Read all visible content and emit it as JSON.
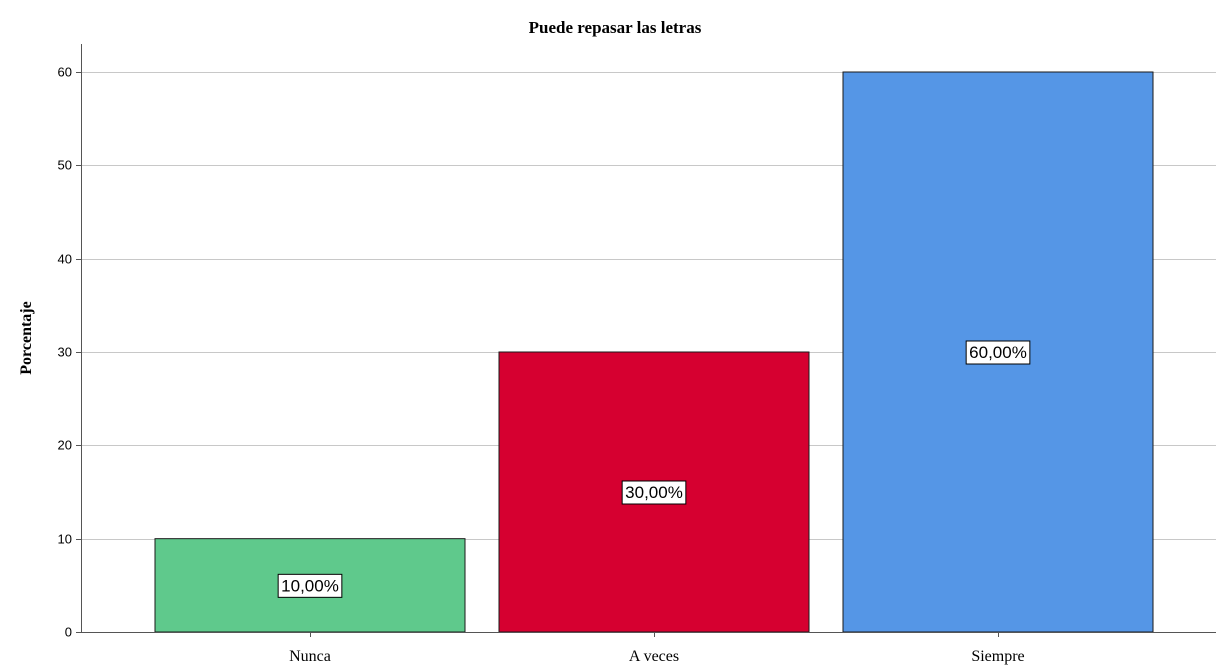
{
  "chart_data": {
    "type": "bar",
    "title": "Puede repasar las letras",
    "xlabel": "",
    "ylabel": "Porcentaje",
    "categories": [
      "Nunca",
      "A veces",
      "Siempre"
    ],
    "values": [
      10,
      30,
      60
    ],
    "data_labels": [
      "10,00%",
      "30,00%",
      "60,00%"
    ],
    "colors": [
      "#5fc98c",
      "#d60030",
      "#5596e6"
    ],
    "ylim": [
      0,
      63
    ],
    "yticks": [
      0,
      10,
      20,
      30,
      40,
      50,
      60
    ],
    "grid": true,
    "legend": "none"
  }
}
